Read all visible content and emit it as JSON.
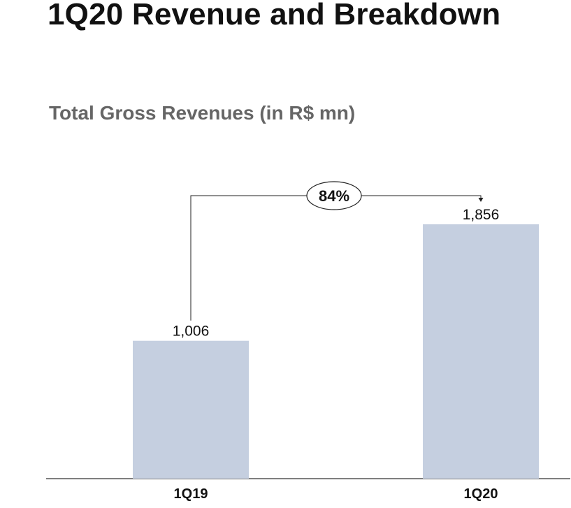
{
  "header": {
    "title": "1Q20 Revenue and Breakdown"
  },
  "chart_data": {
    "type": "bar",
    "title": "Total Gross Revenues (in R$ mn)",
    "categories": [
      "1Q19",
      "1Q20"
    ],
    "values": [
      1006,
      1856
    ],
    "value_labels": [
      "1,006",
      "1,856"
    ],
    "growth_label": "84%",
    "xlabel": "",
    "ylabel": "",
    "ylim": [
      0,
      2100
    ],
    "grid": false,
    "bar_color": "#C5CFE0"
  }
}
